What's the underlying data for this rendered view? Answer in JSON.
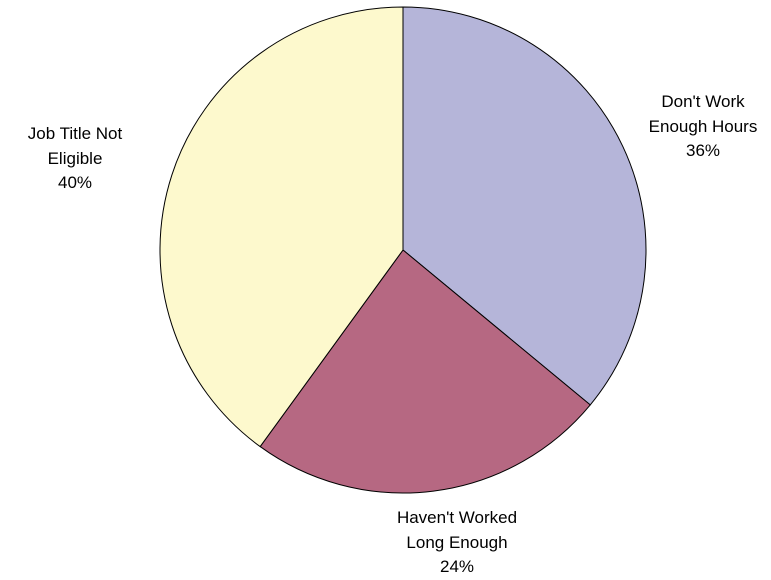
{
  "chart_data": {
    "type": "pie",
    "categories": [
      "Don't Work Enough Hours",
      "Haven't Worked Long Enough",
      "Job Title Not Eligible"
    ],
    "values": [
      36,
      24,
      40
    ],
    "value_labels": [
      "36%",
      "24%",
      "40%"
    ],
    "colors": [
      "#b5b5d9",
      "#b66882",
      "#fdf9cd"
    ]
  }
}
